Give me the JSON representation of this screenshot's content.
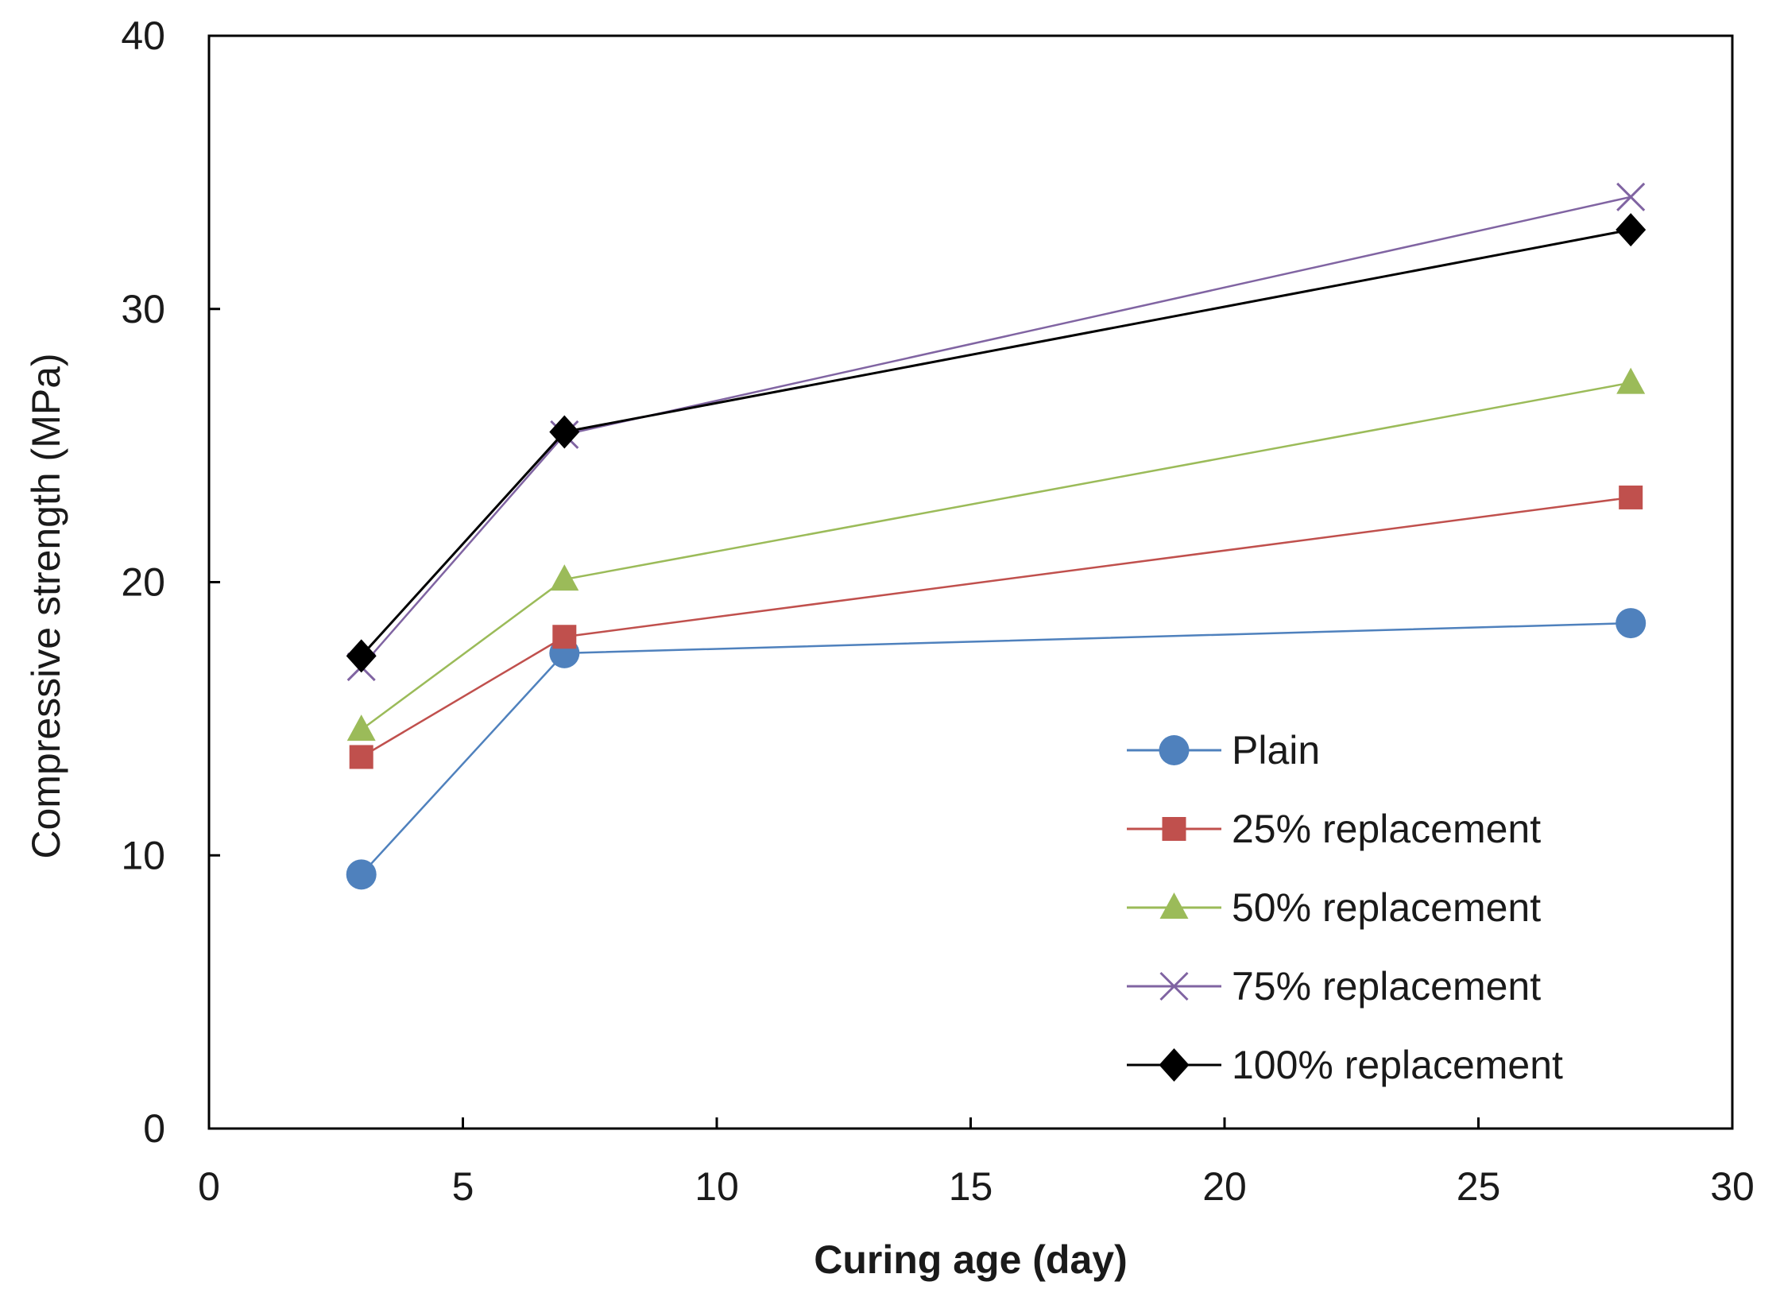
{
  "chart_data": {
    "type": "line",
    "title": "",
    "xlabel": "Curing age (day)",
    "ylabel": "Compressive strength (MPa)",
    "xlim": [
      0,
      30
    ],
    "ylim": [
      0,
      40
    ],
    "xticks": [
      0,
      5,
      10,
      15,
      20,
      25,
      30
    ],
    "yticks": [
      0,
      10,
      20,
      30,
      40
    ],
    "grid": false,
    "legend_position": "bottom-right",
    "x": [
      3,
      7,
      28
    ],
    "series": [
      {
        "name": "Plain",
        "values": [
          9.3,
          17.4,
          18.5
        ],
        "color": "#4f81bd",
        "marker": "circle"
      },
      {
        "name": "25% replacement",
        "values": [
          13.6,
          18.0,
          23.1
        ],
        "color": "#c0504d",
        "marker": "square"
      },
      {
        "name": "50% replacement",
        "values": [
          14.6,
          20.1,
          27.3
        ],
        "color": "#9bbb59",
        "marker": "triangle"
      },
      {
        "name": "75% replacement",
        "values": [
          16.9,
          25.4,
          34.1
        ],
        "color": "#8064a2",
        "marker": "x"
      },
      {
        "name": "100% replacement",
        "values": [
          17.3,
          25.5,
          32.9
        ],
        "color": "#000000",
        "marker": "diamond"
      }
    ]
  }
}
